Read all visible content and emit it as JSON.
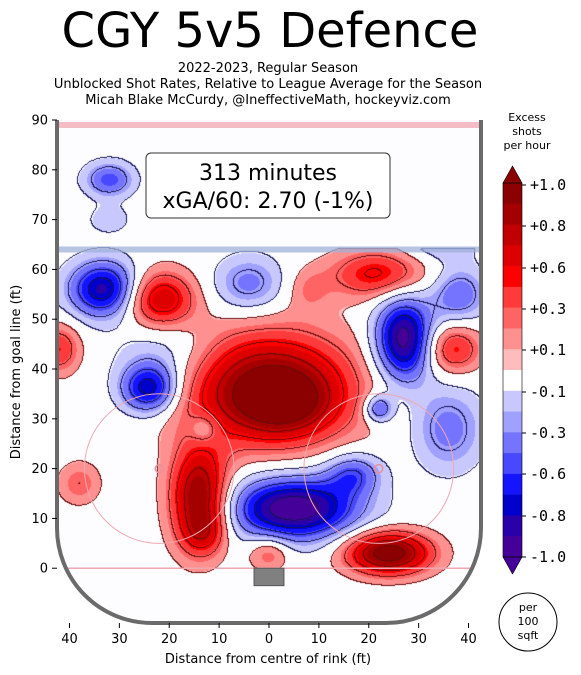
{
  "title": "CGY 5v5 Defence",
  "subtitle_lines": [
    "2022-2023, Regular Season",
    "Unblocked Shot Rates, Relative to League Average for the Season",
    "Micah Blake McCurdy, @IneffectiveMath, hockeyviz.com"
  ],
  "annotation": {
    "line1": "313 minutes",
    "line2": "xGA/60: 2.70 (-1%)"
  },
  "colorbar": {
    "title_lines": [
      "Excess",
      "shots",
      "per hour"
    ],
    "tick_labels": [
      "+1.0",
      "+0.8",
      "+0.6",
      "+0.3",
      "+0.1",
      "-0.1",
      "-0.3",
      "-0.6",
      "-0.8",
      "-1.0"
    ],
    "unit_badge": [
      "per",
      "100",
      "sqft"
    ],
    "colors_top_to_bottom": [
      "#8b0000",
      "#a40000",
      "#c00000",
      "#dd0000",
      "#ff0000",
      "#ff3a3a",
      "#ff6464",
      "#ff9090",
      "#ffbcbc",
      "#ffffff",
      "#c8c8ff",
      "#a0a0ff",
      "#7474ff",
      "#4848ff",
      "#1414ff",
      "#0000cc",
      "#2a00a8",
      "#46009a"
    ]
  },
  "chart_data": {
    "type": "heatmap",
    "title": "CGY 5v5 Defence",
    "xlabel": "Distance from centre of rink (ft)",
    "ylabel": "Distance from goal line (ft)",
    "xlim": [
      -42.5,
      42.5
    ],
    "ylim": [
      -11,
      90
    ],
    "x_ticks": [
      -40,
      -30,
      -20,
      -10,
      0,
      10,
      20,
      30,
      40
    ],
    "x_tick_labels": [
      "40",
      "30",
      "20",
      "10",
      "0",
      "10",
      "20",
      "30",
      "40"
    ],
    "y_ticks": [
      0,
      10,
      20,
      30,
      40,
      50,
      60,
      70,
      80,
      90
    ],
    "y_tick_labels": [
      "0",
      "10",
      "20",
      "30",
      "40",
      "50",
      "60",
      "70",
      "80",
      "90"
    ],
    "value_range": [
      -1.0,
      1.0
    ],
    "blobs": [
      {
        "x": 0,
        "y": 36,
        "sx": 12,
        "sy": 8,
        "value": 1.0
      },
      {
        "x": 3,
        "y": 33,
        "sx": 6,
        "sy": 4,
        "value": 0.4
      },
      {
        "x": -14,
        "y": 14,
        "sx": 4,
        "sy": 7,
        "value": 0.95
      },
      {
        "x": -13,
        "y": 7,
        "sx": 3,
        "sy": 3,
        "value": 0.3
      },
      {
        "x": 24,
        "y": 3,
        "sx": 6,
        "sy": 3,
        "value": 1.05
      },
      {
        "x": -22,
        "y": 54,
        "sx": 5,
        "sy": 4,
        "value": 0.7
      },
      {
        "x": 22,
        "y": 59,
        "sx": 7,
        "sy": 3.5,
        "value": 0.55
      },
      {
        "x": 37,
        "y": 44,
        "sx": 4,
        "sy": 3.5,
        "value": 0.5
      },
      {
        "x": -42,
        "y": 44,
        "sx": 3,
        "sy": 3.5,
        "value": 0.45
      },
      {
        "x": 0,
        "y": 3,
        "sx": 3,
        "sy": 2.5,
        "value": 0.35
      },
      {
        "x": -38,
        "y": 17,
        "sx": 3,
        "sy": 3,
        "value": 0.3
      },
      {
        "x": 8,
        "y": 56,
        "sx": 3,
        "sy": 3,
        "value": 0.2
      },
      {
        "x": 5,
        "y": 12,
        "sx": 9,
        "sy": 4.5,
        "value": -1.05
      },
      {
        "x": 17,
        "y": 19,
        "sx": 4,
        "sy": 3,
        "value": -0.45
      },
      {
        "x": 27,
        "y": 46,
        "sx": 4,
        "sy": 6,
        "value": -1.0
      },
      {
        "x": -33,
        "y": 56,
        "sx": 5,
        "sy": 4,
        "value": -0.85
      },
      {
        "x": -24,
        "y": 36,
        "sx": 4,
        "sy": 3.5,
        "value": -0.8
      },
      {
        "x": -4,
        "y": 57,
        "sx": 5,
        "sy": 4,
        "value": -0.4
      },
      {
        "x": 38,
        "y": 55,
        "sx": 4,
        "sy": 4,
        "value": -0.45
      },
      {
        "x": 36,
        "y": 28,
        "sx": 5,
        "sy": 6,
        "value": -0.4
      },
      {
        "x": 22,
        "y": 32,
        "sx": 2,
        "sy": 2,
        "value": -0.55
      },
      {
        "x": -32,
        "y": 78,
        "sx": 3.5,
        "sy": 2.5,
        "value": -0.5
      },
      {
        "x": -13,
        "y": 28,
        "sx": 2,
        "sy": 2,
        "value": -0.3
      },
      {
        "x": -21,
        "y": 43,
        "sx": 7,
        "sy": 5,
        "value": -0.25
      },
      {
        "x": 34,
        "y": 65,
        "sx": 5,
        "sy": 2.5,
        "value": -0.25
      },
      {
        "x": -32,
        "y": 70,
        "sx": 3,
        "sy": 2,
        "value": -0.2
      }
    ]
  }
}
